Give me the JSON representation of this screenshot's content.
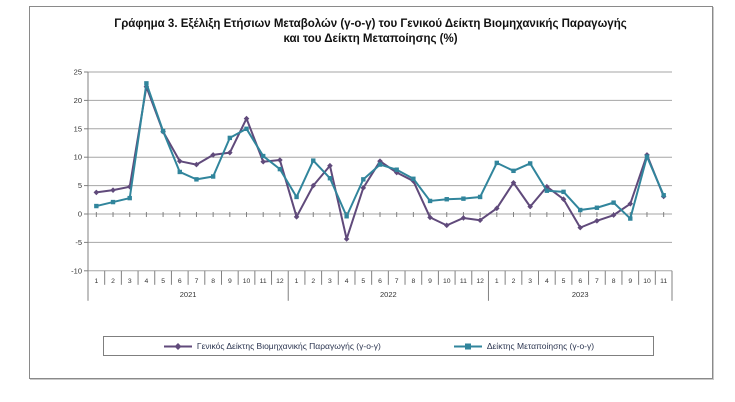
{
  "title": {
    "line1": "Γράφημα 3. Εξέλιξη Ετήσιων Μεταβολών (γ-ο-γ) του Γενικού Δείκτη Βιομηχανικής Παραγωγής",
    "line2": "και του Δείκτη Μεταποίησης (%)"
  },
  "legend": [
    {
      "label": "Γενικός Δείκτης Βιομηχανικής Παραγωγής (γ-ο-γ)",
      "color": "#604a7b",
      "marker": "diamond"
    },
    {
      "label": "Δείκτης Μεταποίησης (γ-ο-γ)",
      "color": "#31859c",
      "marker": "square"
    }
  ],
  "colors": {
    "series_ipi": "#604a7b",
    "series_manufacturing": "#31859c",
    "gridline": "#a6a6a6",
    "axis": "#808080",
    "frame": "#8a8a8a"
  },
  "chart_data": {
    "type": "line",
    "title": "Γράφημα 3. Εξέλιξη Ετήσιων Μεταβολών (γ-ο-γ) του Γενικού Δείκτη Βιομηχανικής Παραγωγής και του Δείκτη Μεταποίησης (%)",
    "ylabel": "",
    "xlabel": "",
    "ylim": [
      -10,
      25
    ],
    "y_ticks": [
      25,
      20,
      15,
      10,
      5,
      0,
      -5,
      -10
    ],
    "grid": true,
    "legend_position": "bottom",
    "x_year_groups": [
      {
        "year": "2021",
        "months": [
          "1",
          "2",
          "3",
          "4",
          "5",
          "6",
          "7",
          "8",
          "9",
          "10",
          "11",
          "12"
        ]
      },
      {
        "year": "2022",
        "months": [
          "1",
          "2",
          "3",
          "4",
          "5",
          "6",
          "7",
          "8",
          "9",
          "10",
          "11",
          "12"
        ]
      },
      {
        "year": "2023",
        "months": [
          "1",
          "2",
          "3",
          "4",
          "5",
          "6",
          "7",
          "8",
          "9",
          "10",
          "11"
        ]
      }
    ],
    "series": [
      {
        "name": "Γενικός Δείκτης Βιομηχανικής Παραγωγής (γ-ο-γ)",
        "color": "#604a7b",
        "marker": "diamond",
        "values": [
          3.8,
          4.2,
          4.8,
          22.4,
          14.5,
          9.3,
          8.7,
          10.4,
          10.8,
          16.8,
          9.2,
          9.5,
          -0.5,
          5.0,
          8.5,
          -4.4,
          4.6,
          9.3,
          7.3,
          5.8,
          -0.6,
          -2.0,
          -0.7,
          -1.1,
          1.0,
          5.5,
          1.3,
          4.8,
          2.6,
          -2.4,
          -1.2,
          -0.2,
          1.8,
          10.4,
          3.1
        ]
      },
      {
        "name": "Δείκτης Μεταποίησης (γ-ο-γ)",
        "color": "#31859c",
        "marker": "square",
        "values": [
          1.4,
          2.1,
          2.8,
          23.0,
          14.6,
          7.4,
          6.1,
          6.6,
          13.4,
          15.0,
          10.2,
          7.9,
          3.0,
          9.4,
          6.3,
          -0.4,
          6.1,
          8.7,
          7.8,
          6.2,
          2.3,
          2.6,
          2.7,
          3.0,
          9.0,
          7.6,
          8.9,
          4.1,
          3.9,
          0.7,
          1.1,
          2.0,
          -0.8,
          10.1,
          3.3
        ]
      }
    ]
  }
}
